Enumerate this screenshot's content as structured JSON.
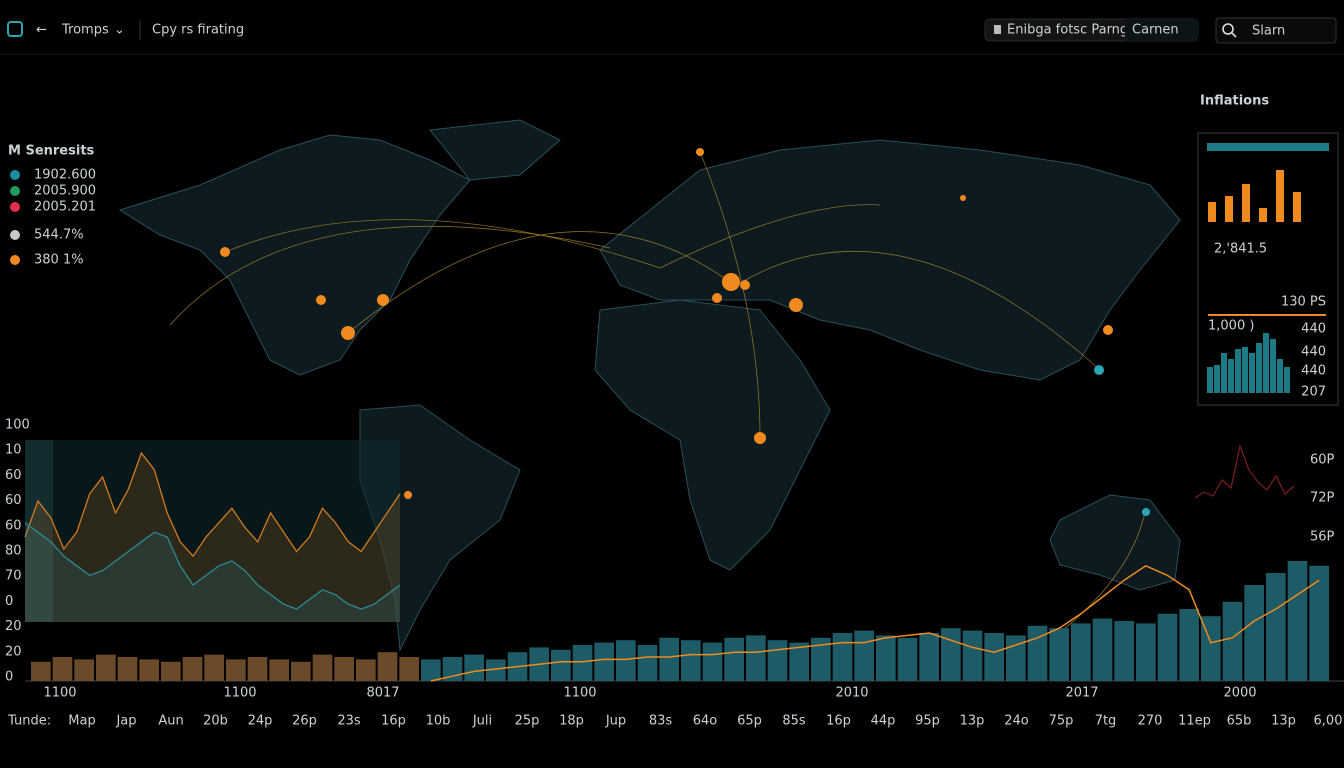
{
  "topbar": {
    "app": "Tromps",
    "page": "Cpy rs firating",
    "filter": "Enibga fotsc Parnganca",
    "filter_value": "Carnen",
    "search": "Slarn"
  },
  "legend": {
    "title": "M Senresits",
    "items": [
      {
        "label": "1902.600",
        "color": "#1a8ea0"
      },
      {
        "label": "2005.900",
        "color": "#1e9e5a"
      },
      {
        "label": "2005.201",
        "color": "#e0304a"
      },
      {
        "label": "544.7%",
        "color": "#c8c8c8"
      },
      {
        "label": "380 1%",
        "color": "#f08a1e"
      }
    ]
  },
  "inflations": {
    "title": "Inflations",
    "value": "2,'841.5",
    "top_label": "130 PS",
    "sub_label": "1,000 )",
    "bars": [
      20,
      26,
      38,
      14,
      52,
      30
    ],
    "bar_color": "#f08a1e",
    "mini_bars": [
      26,
      28,
      40,
      34,
      44,
      46,
      40,
      50,
      60,
      54,
      34,
      26
    ],
    "mini_color": "#1b7a86",
    "axis_labels": [
      "440",
      "440",
      "440",
      "207"
    ]
  },
  "side_chart": {
    "labels": [
      "60P",
      "72P",
      "56P"
    ],
    "values": [
      12,
      18,
      14,
      30,
      22,
      64,
      40,
      28,
      20,
      34,
      16,
      24
    ],
    "color": "#7a1f1f"
  },
  "bottom_chart": {
    "ylim": [
      0,
      100
    ],
    "ylabels": [
      "100",
      "10",
      "60",
      "60",
      "60",
      "80",
      "70",
      "0",
      "20",
      "20",
      "0"
    ],
    "bar_series": [
      {
        "color": "#6b4a2a",
        "values": [
          8,
          10,
          9,
          11,
          10,
          9,
          8,
          10,
          11,
          9,
          10,
          9,
          8,
          11,
          10,
          9,
          12,
          10
        ]
      },
      {
        "color": "#1d5b66",
        "values": [
          9,
          10,
          11,
          9,
          12,
          14,
          13,
          15,
          16,
          17,
          15,
          18,
          17,
          16,
          18,
          19,
          17,
          16,
          18,
          20,
          21,
          19,
          18,
          20,
          22,
          21,
          20,
          19,
          23,
          22,
          24,
          26,
          25,
          24,
          28,
          30,
          27,
          33,
          40,
          45,
          50,
          48
        ]
      }
    ],
    "line": {
      "color": "#f08a1e",
      "values": [
        null,
        null,
        null,
        null,
        null,
        null,
        null,
        null,
        null,
        null,
        null,
        null,
        null,
        null,
        null,
        null,
        null,
        null,
        0,
        2,
        4,
        5,
        6,
        7,
        8,
        8,
        9,
        9,
        10,
        10,
        11,
        11,
        12,
        12,
        13,
        14,
        15,
        16,
        16,
        18,
        19,
        20,
        17,
        14,
        12,
        15,
        18,
        22,
        28,
        35,
        42,
        48,
        44,
        38,
        16,
        18,
        25,
        30,
        36,
        42
      ]
    },
    "area_series": [
      {
        "color": "#d07a1e",
        "values": [
          60,
          75,
          68,
          55,
          62,
          78,
          85,
          70,
          80,
          95,
          88,
          70,
          58,
          52,
          60,
          66,
          72,
          64,
          58,
          70,
          62,
          54,
          60,
          72,
          66,
          58,
          54,
          62,
          70,
          78
        ]
      },
      {
        "color": "#2a8a96",
        "values": [
          66,
          62,
          58,
          52,
          48,
          44,
          46,
          50,
          54,
          58,
          62,
          60,
          48,
          40,
          44,
          48,
          50,
          46,
          40,
          36,
          32,
          30,
          34,
          38,
          36,
          32,
          30,
          32,
          36,
          40
        ]
      }
    ],
    "years": [
      "1100",
      "1100",
      "8017",
      "1100",
      "2010",
      "2017",
      "2000"
    ],
    "row_title": "Tunde:",
    "row_labels": [
      "Map",
      "Jap",
      "Aun",
      "20b",
      "24p",
      "26p",
      "23s",
      "16p",
      "10b",
      "Juli",
      "25p",
      "18p",
      "Jup",
      "83s",
      "64o",
      "65p",
      "85s",
      "16p",
      "44p",
      "95p",
      "13p",
      "24o",
      "75p",
      "7tg",
      "270",
      "11ep",
      "65b",
      "13p",
      "6,00"
    ]
  }
}
